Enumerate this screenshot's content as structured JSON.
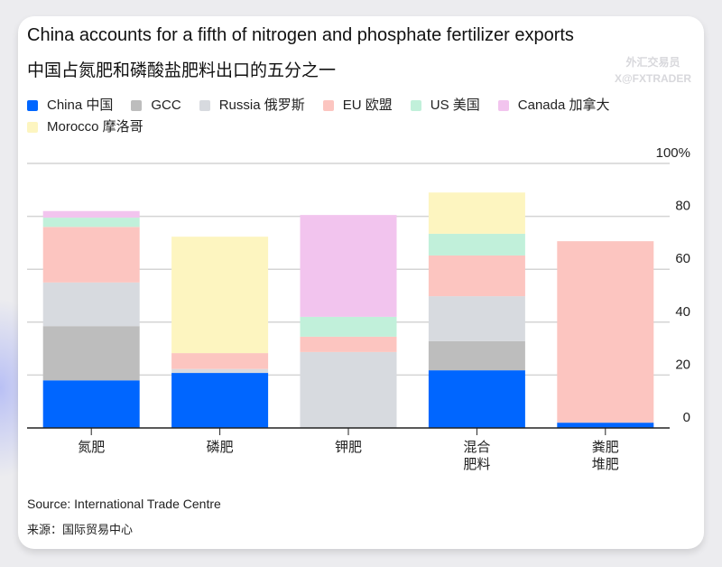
{
  "header": {
    "title": "China accounts for a fifth of nitrogen and phosphate fertilizer exports",
    "subtitle": "中国占氮肥和磷酸盐肥料出口的五分之一"
  },
  "watermark": {
    "line1": "外汇交易员",
    "line2": "X@FXTRADER"
  },
  "footer": {
    "source": "Source: International Trade Centre",
    "source_cn": "来源：国际贸易中心"
  },
  "chart_data": {
    "type": "bar",
    "stacked": true,
    "title": "China accounts for a fifth of nitrogen and phosphate fertilizer exports",
    "subtitle": "中国占氮肥和磷酸盐肥料出口的五分之一",
    "categories": [
      [
        "氮肥"
      ],
      [
        "磷肥"
      ],
      [
        "钾肥"
      ],
      [
        "混合",
        "肥料"
      ],
      [
        "粪肥",
        "堆肥"
      ]
    ],
    "ylim": [
      0,
      100
    ],
    "yticks": [
      "0",
      "20",
      "40",
      "60",
      "80",
      "100%"
    ],
    "ytick_values": [
      0,
      20,
      40,
      60,
      80,
      100
    ],
    "grid": true,
    "yaxis_side": "right",
    "legend_position": "top",
    "series": [
      {
        "name": "China 中国",
        "color": "#0066ff",
        "values": [
          18,
          20.8,
          0,
          21.8,
          2
        ]
      },
      {
        "name": "GCC",
        "color": "#bdbdbd",
        "values": [
          20.5,
          0,
          0,
          11,
          0
        ]
      },
      {
        "name": "Russia 俄罗斯",
        "color": "#d7dadf",
        "values": [
          16.5,
          1.5,
          28.7,
          17,
          0
        ]
      },
      {
        "name": "EU 欧盟",
        "color": "#fcc5c0",
        "values": [
          21,
          6,
          5.8,
          15.4,
          68.6
        ]
      },
      {
        "name": "US 美国",
        "color": "#c1f0da",
        "values": [
          3.5,
          0,
          7.5,
          8.2,
          0
        ]
      },
      {
        "name": "Canada 加拿大",
        "color": "#f2c4ee",
        "values": [
          2.5,
          0,
          38.5,
          0,
          0
        ]
      },
      {
        "name": "Morocco 摩洛哥",
        "color": "#fdf5c0",
        "values": [
          0,
          44,
          0,
          15.6,
          0
        ]
      }
    ]
  }
}
